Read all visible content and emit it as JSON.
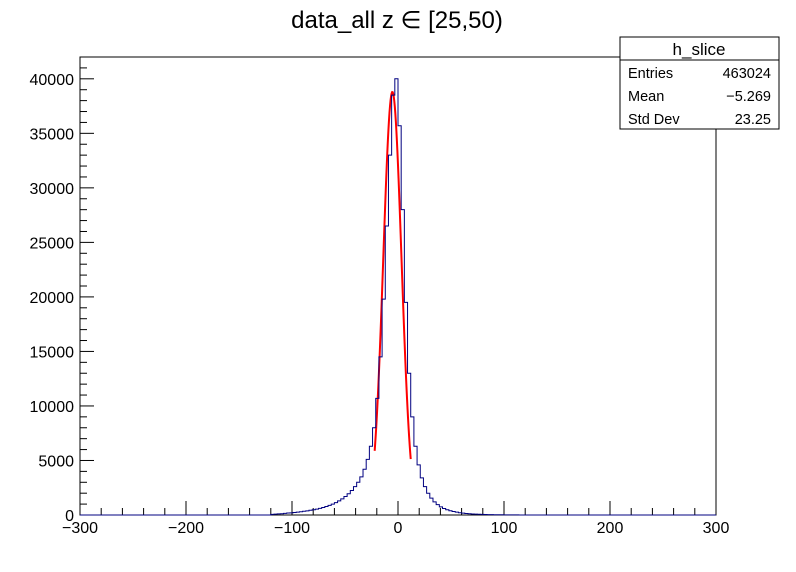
{
  "chart_data": {
    "type": "histogram",
    "title": "data_all z ∈ [25,50)",
    "xlabel": "",
    "ylabel": "",
    "xlim": [
      -300,
      300
    ],
    "ylim": [
      0,
      42000
    ],
    "x_ticks": [
      {
        "value": -300,
        "label": "−300"
      },
      {
        "value": -200,
        "label": "−200"
      },
      {
        "value": -100,
        "label": "−100"
      },
      {
        "value": 0,
        "label": "0"
      },
      {
        "value": 100,
        "label": "100"
      },
      {
        "value": 200,
        "label": "200"
      },
      {
        "value": 300,
        "label": "300"
      }
    ],
    "y_ticks": [
      {
        "value": 0,
        "label": "0"
      },
      {
        "value": 5000,
        "label": "5000"
      },
      {
        "value": 10000,
        "label": "10000"
      },
      {
        "value": 15000,
        "label": "15000"
      },
      {
        "value": 20000,
        "label": "20000"
      },
      {
        "value": 25000,
        "label": "25000"
      },
      {
        "value": 30000,
        "label": "30000"
      },
      {
        "value": 35000,
        "label": "35000"
      },
      {
        "value": 40000,
        "label": "40000"
      }
    ],
    "grid": false,
    "series": [
      {
        "name": "h_slice",
        "kind": "histogram",
        "color": "#000080",
        "bin_width": 3,
        "bin_start": -300,
        "bins": [
          [
            -120,
            60
          ],
          [
            -117,
            80
          ],
          [
            -114,
            100
          ],
          [
            -111,
            120
          ],
          [
            -108,
            150
          ],
          [
            -105,
            180
          ],
          [
            -102,
            200
          ],
          [
            -99,
            230
          ],
          [
            -96,
            260
          ],
          [
            -93,
            300
          ],
          [
            -90,
            340
          ],
          [
            -87,
            380
          ],
          [
            -84,
            430
          ],
          [
            -81,
            480
          ],
          [
            -78,
            540
          ],
          [
            -75,
            610
          ],
          [
            -72,
            690
          ],
          [
            -69,
            780
          ],
          [
            -66,
            880
          ],
          [
            -63,
            1000
          ],
          [
            -60,
            1140
          ],
          [
            -57,
            1300
          ],
          [
            -54,
            1480
          ],
          [
            -51,
            1700
          ],
          [
            -48,
            1950
          ],
          [
            -45,
            2250
          ],
          [
            -42,
            2600
          ],
          [
            -39,
            3000
          ],
          [
            -36,
            3500
          ],
          [
            -33,
            4200
          ],
          [
            -30,
            5100
          ],
          [
            -27,
            6300
          ],
          [
            -24,
            8000
          ],
          [
            -21,
            10700
          ],
          [
            -18,
            14500
          ],
          [
            -15,
            19800
          ],
          [
            -12,
            26500
          ],
          [
            -9,
            33000
          ],
          [
            -6,
            38500
          ],
          [
            -3,
            40000
          ],
          [
            0,
            35700
          ],
          [
            3,
            28000
          ],
          [
            6,
            19500
          ],
          [
            9,
            13000
          ],
          [
            12,
            9000
          ],
          [
            15,
            6300
          ],
          [
            18,
            4600
          ],
          [
            21,
            3400
          ],
          [
            24,
            2600
          ],
          [
            27,
            2000
          ],
          [
            30,
            1550
          ],
          [
            33,
            1200
          ],
          [
            36,
            950
          ],
          [
            39,
            750
          ],
          [
            42,
            600
          ],
          [
            45,
            480
          ],
          [
            48,
            390
          ],
          [
            51,
            320
          ],
          [
            54,
            260
          ],
          [
            57,
            210
          ],
          [
            60,
            170
          ],
          [
            63,
            140
          ],
          [
            66,
            115
          ],
          [
            69,
            95
          ],
          [
            72,
            80
          ],
          [
            75,
            65
          ],
          [
            78,
            55
          ],
          [
            81,
            45
          ],
          [
            84,
            38
          ],
          [
            87,
            32
          ],
          [
            90,
            27
          ],
          [
            93,
            22
          ],
          [
            96,
            18
          ],
          [
            99,
            15
          ],
          [
            102,
            12
          ],
          [
            105,
            10
          ],
          [
            108,
            8
          ],
          [
            111,
            6
          ],
          [
            114,
            5
          ],
          [
            117,
            4
          ]
        ]
      },
      {
        "name": "fit",
        "kind": "gaussian-fit",
        "color": "#ff0000",
        "mean": -5.3,
        "sigma": 8.6,
        "amplitude": 38800,
        "range": [
          -22,
          12
        ]
      }
    ],
    "stats_box": {
      "title": "h_slice",
      "rows": [
        {
          "label": "Entries",
          "value": "463024"
        },
        {
          "label": "Mean",
          "value": "−5.269"
        },
        {
          "label": "Std Dev",
          "value": "23.25"
        }
      ]
    }
  }
}
